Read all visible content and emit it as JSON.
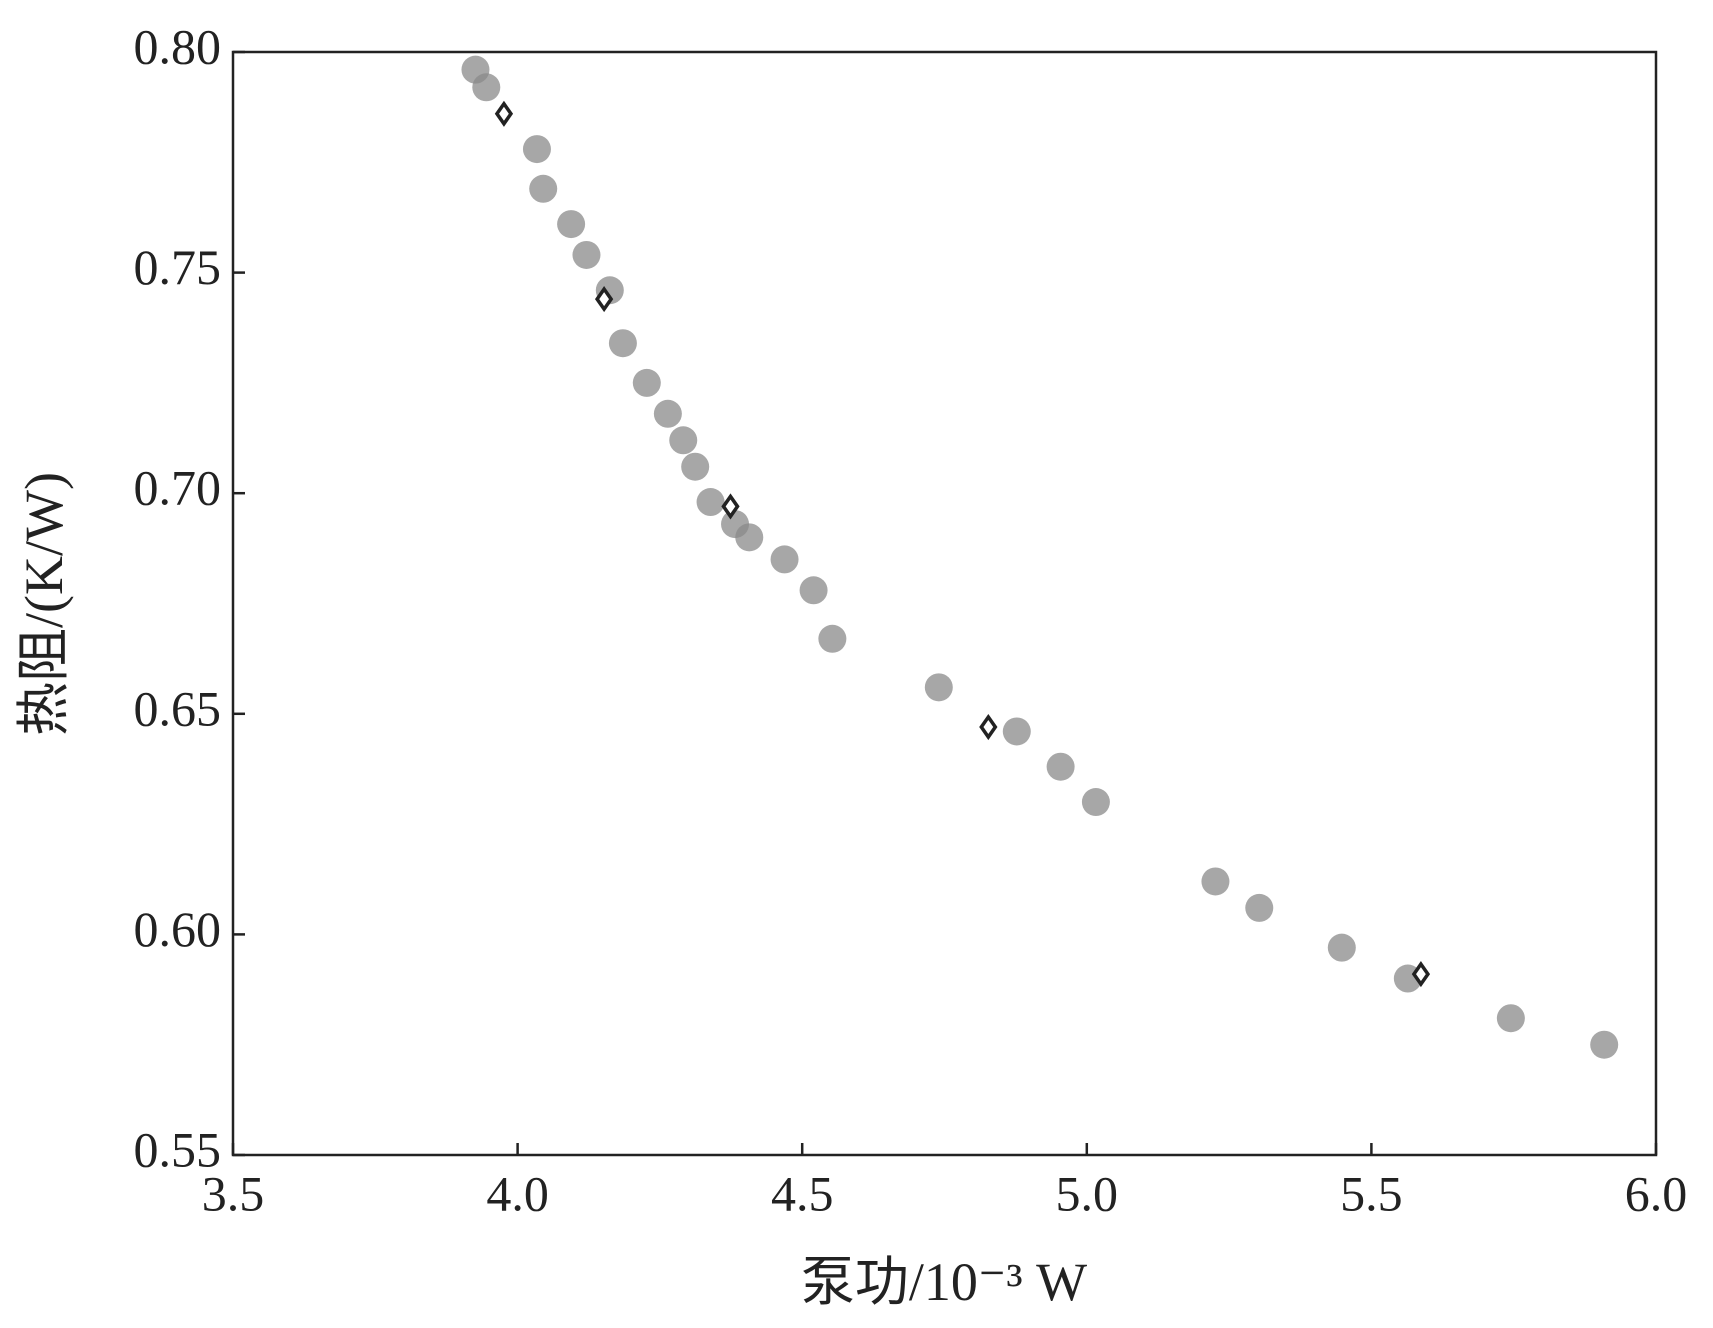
{
  "chart_data": {
    "type": "scatter",
    "x_label": "泵功/10⁻³ W",
    "y_label": "热阻/(K/W)",
    "xlim": [
      3.5,
      6.0
    ],
    "ylim": [
      0.55,
      0.8
    ],
    "xticks": [
      3.5,
      {
        "value": 4.0,
        "label": "4.0"
      },
      4.5,
      {
        "value": 5.0,
        "label": "5.0"
      },
      5.5,
      {
        "value": 6.0,
        "label": "6.0"
      }
    ],
    "yticks": [
      0.55,
      {
        "value": 0.6,
        "label": "0.60"
      },
      0.65,
      {
        "value": 0.7,
        "label": "0.70"
      },
      0.75,
      {
        "value": 0.8,
        "label": "0.80"
      }
    ],
    "grid": false,
    "series": [
      {
        "color": "#8a8a8a",
        "marker": "circle",
        "x": [
          3.926,
          3.945,
          4.034,
          4.045,
          4.094,
          4.121,
          4.162,
          4.185,
          4.227,
          4.264,
          4.291,
          4.312,
          4.339,
          4.382,
          4.407,
          4.469,
          4.52,
          4.553,
          4.74,
          4.877,
          4.954,
          5.016,
          5.226,
          5.303,
          5.448,
          5.564,
          5.745,
          5.909
        ],
        "values": [
          0.796,
          0.792,
          0.778,
          0.769,
          0.761,
          0.754,
          0.746,
          0.734,
          0.725,
          0.718,
          0.712,
          0.706,
          0.698,
          0.693,
          0.69,
          0.685,
          0.678,
          0.667,
          0.656,
          0.646,
          0.638,
          0.63,
          0.612,
          0.606,
          0.597,
          0.59,
          0.581,
          0.575
        ]
      },
      {
        "color": "#222222",
        "marker": "diamond",
        "x": [
          3.976,
          4.152,
          4.374,
          4.827,
          5.587
        ],
        "values": [
          0.786,
          0.744,
          0.697,
          0.647,
          0.591
        ]
      }
    ]
  }
}
